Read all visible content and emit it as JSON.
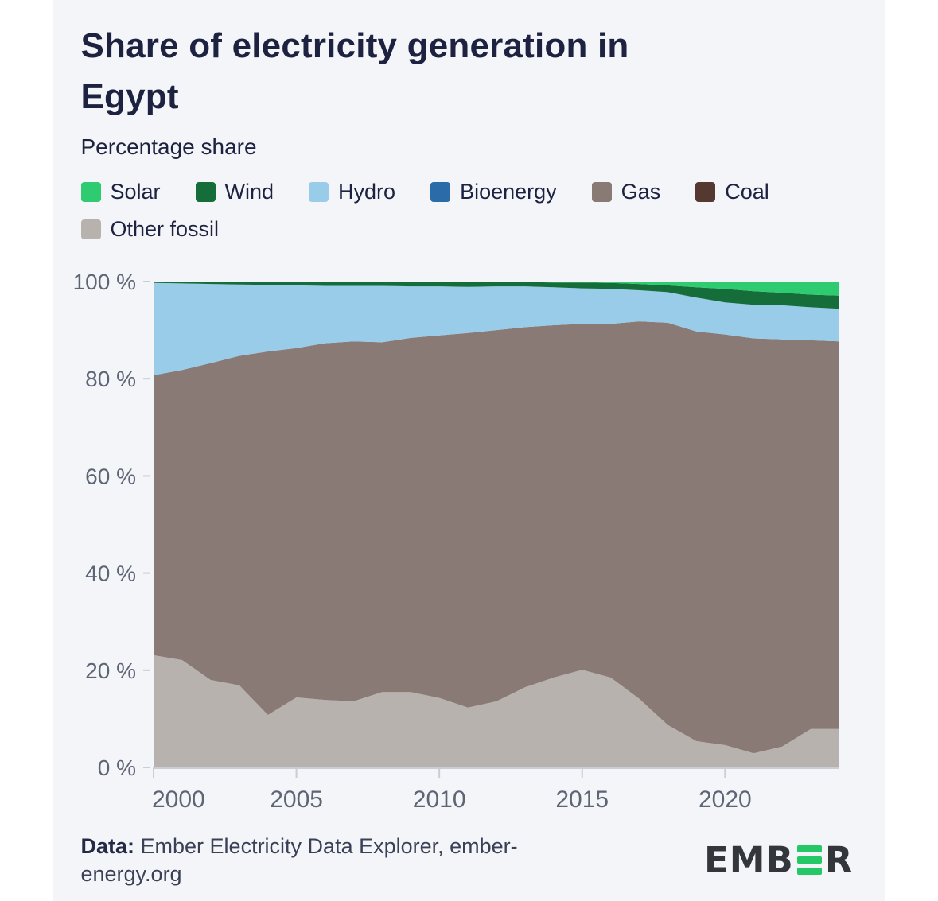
{
  "header": {
    "title_lines": [
      "Share of electricity generation in",
      "Egypt"
    ],
    "subtitle": "Percentage share"
  },
  "legend": {
    "items": [
      {
        "label": "Solar",
        "color": "#2ecb71"
      },
      {
        "label": "Wind",
        "color": "#156d39"
      },
      {
        "label": "Hydro",
        "color": "#98cce9"
      },
      {
        "label": "Bioenergy",
        "color": "#2b6ca8"
      },
      {
        "label": "Gas",
        "color": "#8a7a75"
      },
      {
        "label": "Coal",
        "color": "#533930"
      },
      {
        "label": "Other fossil",
        "color": "#b8b2ae"
      }
    ]
  },
  "chart_data": {
    "type": "area",
    "stacked": true,
    "title": "Share of electricity generation in Egypt",
    "ylabel": "Percentage share",
    "x": [
      2000,
      2001,
      2002,
      2003,
      2004,
      2005,
      2006,
      2007,
      2008,
      2009,
      2010,
      2011,
      2012,
      2013,
      2014,
      2015,
      2016,
      2017,
      2018,
      2019,
      2020,
      2021,
      2022,
      2023,
      2024
    ],
    "xlim": [
      2000,
      2024
    ],
    "ylim": [
      0,
      100
    ],
    "xticks": [
      2000,
      2005,
      2010,
      2015,
      2020
    ],
    "yticks": [
      0,
      20,
      40,
      60,
      80,
      100
    ],
    "ytick_labels": [
      "0 %",
      "20 %",
      "40 %",
      "60 %",
      "80 %",
      "100 %"
    ],
    "grid": false,
    "legend_position": "top",
    "axis_color": "#c9cdd6",
    "series_order": "top-to-bottom",
    "series": [
      {
        "name": "Solar",
        "color": "#2ecb71",
        "values": [
          0,
          0,
          0,
          0,
          0,
          0,
          0,
          0,
          0,
          0,
          0,
          0,
          0,
          0.1,
          0.2,
          0.2,
          0.3,
          0.5,
          0.8,
          1.2,
          1.5,
          2.0,
          2.3,
          2.7,
          2.9
        ]
      },
      {
        "name": "Wind",
        "color": "#156d39",
        "values": [
          0.3,
          0.4,
          0.5,
          0.6,
          0.7,
          0.8,
          0.9,
          0.9,
          0.9,
          1.0,
          1.0,
          1.1,
          1.0,
          0.9,
          1.0,
          1.2,
          1.2,
          1.3,
          1.4,
          2.1,
          2.8,
          2.8,
          2.6,
          2.6,
          2.7
        ]
      },
      {
        "name": "Hydro",
        "color": "#98cce9",
        "values": [
          19.0,
          17.8,
          16.3,
          14.7,
          13.7,
          12.9,
          11.8,
          11.4,
          11.6,
          10.6,
          10.1,
          9.5,
          9.0,
          8.4,
          7.8,
          7.3,
          7.2,
          6.4,
          6.3,
          7.0,
          6.6,
          6.9,
          7.0,
          6.8,
          6.7
        ]
      },
      {
        "name": "Bioenergy",
        "color": "#2b6ca8",
        "values": [
          0,
          0,
          0,
          0,
          0,
          0,
          0,
          0,
          0,
          0,
          0,
          0,
          0,
          0,
          0,
          0,
          0,
          0,
          0,
          0,
          0,
          0,
          0,
          0,
          0
        ]
      },
      {
        "name": "Gas",
        "color": "#8a7a75",
        "values": [
          57.6,
          59.7,
          65.2,
          67.8,
          74.8,
          71.9,
          73.4,
          74.1,
          72.0,
          72.9,
          74.6,
          77.1,
          76.4,
          74.1,
          72.5,
          71.2,
          72.8,
          77.7,
          82.8,
          84.3,
          84.5,
          85.4,
          83.8,
          80.0,
          79.8
        ]
      },
      {
        "name": "Coal",
        "color": "#533930",
        "values": [
          0,
          0,
          0,
          0,
          0,
          0,
          0,
          0,
          0,
          0,
          0,
          0,
          0,
          0,
          0,
          0,
          0,
          0,
          0,
          0,
          0,
          0,
          0,
          0,
          0
        ]
      },
      {
        "name": "Other fossil",
        "color": "#b8b2ae",
        "values": [
          23.1,
          22.1,
          18.0,
          16.9,
          10.8,
          14.4,
          13.9,
          13.6,
          15.5,
          15.5,
          14.3,
          12.3,
          13.6,
          16.5,
          18.5,
          20.1,
          18.5,
          14.1,
          8.7,
          5.4,
          4.6,
          2.9,
          4.3,
          7.9,
          7.9
        ]
      }
    ]
  },
  "footer": {
    "source_label": "Data:",
    "source_rest": " Ember Electricity Data Explorer, ember-",
    "source_line2": "energy.org",
    "logo": {
      "text_before": "EMB",
      "text_after": "R",
      "bar_color": "#25c866",
      "text_color": "#33363b"
    }
  }
}
